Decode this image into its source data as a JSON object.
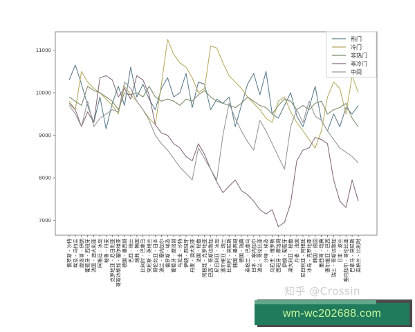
{
  "chart_data": {
    "type": "line",
    "title": "",
    "xlabel": "",
    "ylabel": "",
    "ylim": [
      6600,
      11450
    ],
    "yticks": [
      7000,
      8000,
      9000,
      10000,
      11000
    ],
    "grid": false,
    "legend_position": "upper right",
    "categories": [
      "俄罗斯 - 沙特",
      "埃及 - 乌拉圭",
      "摩洛哥 - 伊朗",
      "葡萄牙 - 西班牙",
      "法国 - 澳大利亚",
      "阿根廷 - 冰岛",
      "秘鲁 - 丹麦",
      "克罗地亚 - 尼日利亚",
      "哥斯达黎加 - 塞尔维亚",
      "德国 - 墨西哥",
      "巴西 - 瑞士",
      "瑞典 - 韩国",
      "比利时 - 巴拿马",
      "突尼斯 - 英格兰",
      "哥伦比亚 - 日本",
      "波兰 - 塞内加尔",
      "俄罗斯 - 埃及",
      "葡萄牙 - 摩洛哥",
      "乌拉圭 - 沙特",
      "伊朗 - 西班牙",
      "丹麦 - 澳大利亚",
      "法国 - 秘鲁",
      "阿根廷 - 克罗地亚",
      "巴西 - 哥斯达黎加",
      "尼日利亚 - 冰岛",
      "塞尔维亚 - 瑞士",
      "比利时 - 突尼斯",
      "韩国 - 墨西哥",
      "德国 - 瑞典",
      "英格兰 - 巴拿马",
      "日本 - 塞内加尔",
      "波兰 - 哥伦比亚",
      "沙特 - 埃及",
      "乌拉圭 - 俄罗斯",
      "西班牙 - 摩洛哥",
      "伊朗 - 葡萄牙",
      "澳大利亚 - 秘鲁",
      "丹麦 - 法国",
      "尼日利亚 - 阿根廷",
      "冰岛 - 克罗地亚",
      "韩国 - 德国",
      "墨西哥 - 瑞典",
      "塞尔维亚 - 巴西",
      "瑞士 - 哥斯达黎加",
      "日本 - 波兰",
      "塞内加尔 - 哥伦比亚",
      "巴拿马 - 突尼斯",
      "英格兰 - 比利时"
    ],
    "series": [
      {
        "name": "热门",
        "color": "#5d7f8e",
        "values": [
          10300,
          10650,
          10200,
          9700,
          9300,
          9900,
          9150,
          9750,
          10150,
          9700,
          10600,
          9900,
          10200,
          9850,
          9600,
          10100,
          10350,
          9900,
          10000,
          10450,
          9650,
          10250,
          10200,
          9600,
          9850,
          9750,
          9900,
          9200,
          9700,
          10200,
          10450,
          9950,
          10500,
          9500,
          9400,
          9700,
          10000,
          9450,
          9200,
          9650,
          10150,
          9350,
          9100,
          9500,
          9200,
          9650,
          9500,
          9700
        ]
      },
      {
        "name": "冷门",
        "color": "#b9ab63",
        "values": [
          9800,
          9600,
          10500,
          10250,
          10100,
          10000,
          9850,
          9700,
          9500,
          10150,
          9950,
          9800,
          9600,
          9400,
          9250,
          10200,
          11250,
          10900,
          10700,
          10600,
          10350,
          10000,
          10100,
          11100,
          11050,
          10700,
          10400,
          10250,
          10100,
          9900,
          9750,
          9600,
          9400,
          9300,
          9800,
          9900,
          9550,
          9300,
          9100,
          8900,
          8700,
          9100,
          9900,
          10250,
          10100,
          9500,
          10400,
          10000
        ]
      },
      {
        "name": "非热门",
        "color": "#7d8c6c",
        "values": [
          9900,
          9800,
          9700,
          10150,
          10050,
          10000,
          9900,
          9800,
          9600,
          10000,
          9950,
          10000,
          9900,
          10150,
          9900,
          9800,
          9850,
          9800,
          9700,
          9850,
          9800,
          9950,
          10050,
          9900,
          9800,
          9750,
          9700,
          9650,
          9750,
          9900,
          9800,
          9700,
          9650,
          9500,
          9700,
          9850,
          9800,
          9600,
          9700,
          9600,
          9750,
          9800,
          9500,
          9600,
          9650,
          9750,
          9400,
          9200
        ]
      },
      {
        "name": "非冷门",
        "color": "#876b7c",
        "values": [
          9750,
          9600,
          9200,
          9550,
          9300,
          10350,
          10400,
          10300,
          9900,
          10100,
          9850,
          10400,
          10300,
          9950,
          9250,
          9050,
          9000,
          8800,
          8700,
          8500,
          8400,
          8800,
          8550,
          8200,
          7900,
          7650,
          7800,
          7950,
          7700,
          7600,
          7450,
          7250,
          7150,
          7250,
          6850,
          6950,
          7400,
          8400,
          8650,
          8700,
          8950,
          8900,
          8800,
          7950,
          7450,
          7300,
          7950,
          7450
        ]
      },
      {
        "name": "中间",
        "color": "#979797",
        "values": [
          9700,
          9500,
          9200,
          9800,
          9200,
          9400,
          9500,
          9600,
          9550,
          10250,
          10100,
          9800,
          9600,
          9350,
          9000,
          8800,
          8650,
          8450,
          8250,
          8100,
          7950,
          8700,
          8450,
          8200,
          7950,
          9000,
          9750,
          9400,
          9100,
          8850,
          8650,
          9350,
          9100,
          8800,
          8500,
          8200,
          9200,
          9600,
          9300,
          9800,
          9450,
          9350,
          9100,
          8900,
          8700,
          8600,
          8500,
          8350
        ]
      }
    ]
  },
  "legend": {
    "items": [
      {
        "label": "热门",
        "color": "#5d7f8e"
      },
      {
        "label": "冷门",
        "color": "#b9ab63"
      },
      {
        "label": "非热门",
        "color": "#7d8c6c"
      },
      {
        "label": "非冷门",
        "color": "#876b7c"
      },
      {
        "label": "中间",
        "color": "#979797"
      }
    ]
  },
  "watermark": {
    "text": "知乎 @Crossin"
  },
  "banner": {
    "text": "wm-wc202688.com"
  }
}
